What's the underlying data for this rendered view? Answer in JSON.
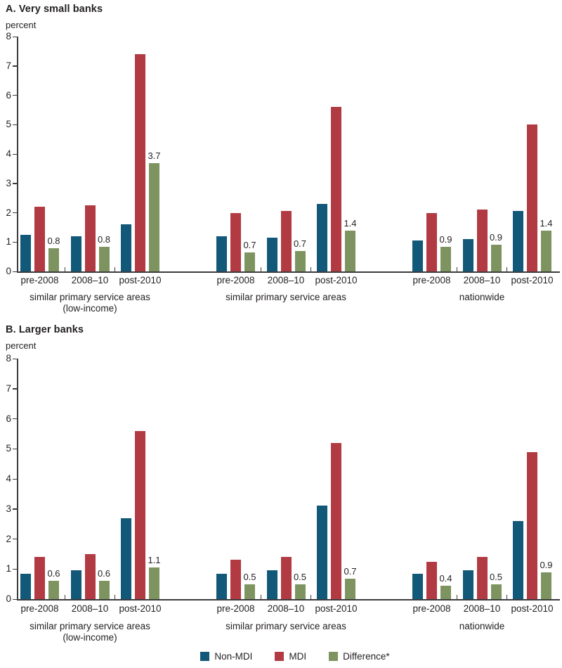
{
  "colors": {
    "non_mdi": "#125878",
    "mdi": "#b23b43",
    "difference": "#7e9460",
    "axis": "#3c3c3e",
    "text": "#231f20"
  },
  "legend": {
    "items": [
      {
        "key": "non_mdi",
        "label": "Non-MDI"
      },
      {
        "key": "mdi",
        "label": "MDI"
      },
      {
        "key": "difference",
        "label": "Difference*"
      }
    ]
  },
  "chart_data": [
    {
      "type": "bar",
      "panel": "A",
      "title": "A. Very small banks",
      "ylabel": "percent",
      "ylim": [
        0,
        8
      ],
      "yticks": [
        0,
        1,
        2,
        3,
        4,
        5,
        6,
        7,
        8
      ],
      "grid": false,
      "legend_position": "bottom",
      "series": [
        "Non-MDI",
        "MDI",
        "Difference*"
      ],
      "groups": [
        {
          "label": "similar primary service areas",
          "sublabel": "(low-income)",
          "clusters": [
            {
              "period": "pre-2008",
              "values": [
                1.25,
                2.2,
                0.8
              ],
              "diff_label": "0.8"
            },
            {
              "period": "2008–10",
              "values": [
                1.2,
                2.25,
                0.85
              ],
              "diff_label": "0.8"
            },
            {
              "period": "post-2010",
              "values": [
                1.6,
                7.4,
                3.7
              ],
              "diff_label": "3.7"
            }
          ]
        },
        {
          "label": "similar primary service areas",
          "sublabel": "",
          "clusters": [
            {
              "period": "pre-2008",
              "values": [
                1.2,
                2.0,
                0.65
              ],
              "diff_label": "0.7"
            },
            {
              "period": "2008–10",
              "values": [
                1.15,
                2.05,
                0.7
              ],
              "diff_label": "0.7"
            },
            {
              "period": "post-2010",
              "values": [
                2.3,
                5.6,
                1.4
              ],
              "diff_label": "1.4"
            }
          ]
        },
        {
          "label": "nationwide",
          "sublabel": "",
          "clusters": [
            {
              "period": "pre-2008",
              "values": [
                1.05,
                2.0,
                0.85
              ],
              "diff_label": "0.9"
            },
            {
              "period": "2008–10",
              "values": [
                1.1,
                2.1,
                0.9
              ],
              "diff_label": "0.9"
            },
            {
              "period": "post-2010",
              "values": [
                2.05,
                5.0,
                1.4
              ],
              "diff_label": "1.4"
            }
          ]
        }
      ]
    },
    {
      "type": "bar",
      "panel": "B",
      "title": "B. Larger banks",
      "ylabel": "percent",
      "ylim": [
        0,
        8
      ],
      "yticks": [
        0,
        1,
        2,
        3,
        4,
        5,
        6,
        7,
        8
      ],
      "grid": false,
      "legend_position": "bottom",
      "series": [
        "Non-MDI",
        "MDI",
        "Difference*"
      ],
      "groups": [
        {
          "label": "similar primary service areas",
          "sublabel": "(low-income)",
          "clusters": [
            {
              "period": "pre-2008",
              "values": [
                0.85,
                1.4,
                0.6
              ],
              "diff_label": "0.6"
            },
            {
              "period": "2008–10",
              "values": [
                0.95,
                1.5,
                0.6
              ],
              "diff_label": "0.6"
            },
            {
              "period": "post-2010",
              "values": [
                2.7,
                5.6,
                1.05
              ],
              "diff_label": "1.1"
            }
          ]
        },
        {
          "label": "similar primary service areas",
          "sublabel": "",
          "clusters": [
            {
              "period": "pre-2008",
              "values": [
                0.85,
                1.3,
                0.5
              ],
              "diff_label": "0.5"
            },
            {
              "period": "2008–10",
              "values": [
                0.95,
                1.4,
                0.5
              ],
              "diff_label": "0.5"
            },
            {
              "period": "post-2010",
              "values": [
                3.1,
                5.2,
                0.68
              ],
              "diff_label": "0.7"
            }
          ]
        },
        {
          "label": "nationwide",
          "sublabel": "",
          "clusters": [
            {
              "period": "pre-2008",
              "values": [
                0.85,
                1.25,
                0.45
              ],
              "diff_label": "0.4"
            },
            {
              "period": "2008–10",
              "values": [
                0.95,
                1.4,
                0.5
              ],
              "diff_label": "0.5"
            },
            {
              "period": "post-2010",
              "values": [
                2.6,
                4.9,
                0.88
              ],
              "diff_label": "0.9"
            }
          ]
        }
      ]
    }
  ]
}
